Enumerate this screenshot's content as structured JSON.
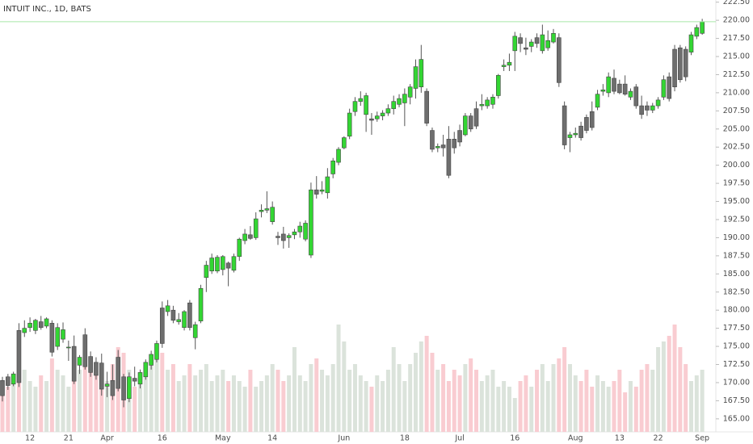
{
  "chart_data": {
    "type": "candlestick",
    "title": "INTUIT INC., 1D, BATS",
    "categories": [
      null,
      null,
      null,
      null,
      null,
      "12",
      null,
      null,
      null,
      null,
      null,
      null,
      "21",
      null,
      null,
      null,
      null,
      null,
      null,
      "Apr",
      null,
      null,
      null,
      null,
      null,
      null,
      null,
      null,
      null,
      "16",
      null,
      null,
      null,
      null,
      null,
      null,
      null,
      null,
      null,
      null,
      "May",
      null,
      null,
      null,
      null,
      null,
      null,
      null,
      null,
      "14",
      null,
      null,
      null,
      null,
      null,
      null,
      null,
      null,
      null,
      null,
      null,
      null,
      "Jun",
      null,
      null,
      null,
      null,
      null,
      null,
      null,
      null,
      null,
      null,
      "18",
      null,
      null,
      null,
      null,
      null,
      null,
      null,
      null,
      null,
      "Jul",
      null,
      null,
      null,
      null,
      null,
      null,
      null,
      null,
      null,
      "16",
      null,
      null,
      null,
      null,
      null,
      null,
      null,
      null,
      null,
      null,
      "Aug",
      null,
      null,
      null,
      null,
      null,
      null,
      null,
      "13",
      null,
      null,
      null,
      null,
      null,
      null,
      "22",
      null,
      null,
      null,
      null,
      null,
      null,
      null,
      "Sep"
    ],
    "open": [
      170.3,
      170.8,
      169.8,
      177.2,
      176.9,
      177.6,
      177.2,
      178.4,
      177.8,
      178.2,
      175.0,
      176.0,
      174.8,
      175.0,
      172.4,
      176.6,
      173.6,
      172.8,
      172.7,
      169.5,
      170.3,
      173.5,
      170.8,
      167.8,
      170.6,
      169.8,
      170.8,
      172.4,
      173.2,
      180.3,
      179.8,
      180.0,
      178.4,
      177.6,
      181.0,
      176.2,
      178.5,
      184.5,
      185.4,
      185.4,
      185.6,
      186.5,
      185.5,
      187.4,
      189.6,
      190.4,
      190.0,
      193.6,
      193.8,
      192.2,
      190.2,
      190.5,
      190.0,
      190.4,
      190.8,
      189.8,
      187.6,
      196.6,
      196.4,
      196.2,
      198.8,
      200.4,
      202.4,
      204.0,
      207.4,
      208.8,
      207.0,
      206.4,
      206.4,
      206.8,
      207.2,
      207.8,
      208.4,
      208.6,
      209.4,
      210.6,
      210.8,
      210.2,
      204.8,
      202.4,
      202.8,
      203.6,
      203.6,
      204.8,
      204.2,
      206.8,
      207.8,
      208.2,
      208.2,
      208.4,
      209.6,
      213.6,
      213.8,
      215.8,
      217.6,
      216.2,
      216.4,
      217.6,
      215.8,
      216.2,
      217.0,
      217.6,
      208.2,
      203.8,
      204.2,
      205.4,
      206.6,
      207.4,
      208.0,
      210.2,
      210.0,
      212.0,
      211.2,
      211.2,
      209.4,
      210.8,
      208.2,
      208.2,
      207.6,
      208.2,
      209.4,
      212.2,
      216.0,
      216.2,
      216.0,
      215.6,
      217.8,
      218.2
    ],
    "high": [
      170.8,
      171.2,
      171.5,
      178.2,
      178.6,
      179.0,
      178.8,
      179.2,
      179.0,
      178.6,
      178.2,
      178.3,
      175.8,
      176.5,
      173.8,
      177.5,
      174.3,
      173.5,
      174.0,
      171.5,
      172.5,
      174.5,
      171.2,
      171.4,
      172.2,
      171.8,
      173.2,
      174.4,
      175.8,
      181.2,
      181.4,
      180.6,
      179.6,
      180.0,
      181.4,
      178.4,
      183.5,
      186.8,
      187.8,
      187.6,
      187.6,
      186.7,
      187.8,
      190.0,
      191.2,
      191.6,
      193.5,
      194.6,
      196.4,
      195.0,
      190.8,
      191.5,
      190.6,
      191.2,
      192.2,
      192.4,
      197.6,
      198.5,
      197.8,
      199.6,
      201.0,
      202.5,
      204.0,
      207.8,
      209.4,
      210.2,
      210.0,
      207.2,
      207.4,
      207.6,
      208.4,
      209.6,
      209.8,
      210.6,
      211.2,
      214.6,
      216.6,
      210.6,
      205.2,
      203.0,
      204.2,
      205.4,
      204.6,
      205.6,
      207.2,
      207.2,
      208.8,
      209.8,
      209.4,
      209.8,
      212.6,
      214.6,
      215.4,
      218.4,
      218.2,
      217.6,
      217.4,
      218.2,
      219.4,
      218.6,
      218.8,
      218.2,
      208.8,
      204.6,
      205.2,
      206.0,
      207.0,
      208.8,
      210.4,
      211.2,
      212.8,
      213.2,
      211.8,
      212.4,
      210.6,
      211.2,
      209.6,
      208.8,
      208.6,
      209.4,
      212.4,
      212.8,
      216.6,
      216.6,
      216.4,
      218.4,
      219.4,
      220.2
    ],
    "low": [
      167.4,
      169.0,
      169.5,
      169.4,
      176.3,
      177.0,
      176.7,
      177.3,
      177.5,
      173.6,
      174.5,
      175.5,
      173.0,
      169.8,
      171.2,
      171.8,
      170.8,
      170.4,
      168.2,
      168.0,
      167.6,
      168.8,
      166.6,
      167.3,
      169.5,
      169.2,
      170.4,
      171.8,
      172.8,
      174.8,
      179.2,
      178.2,
      178.0,
      177.2,
      177.2,
      174.6,
      178.2,
      182.5,
      185.0,
      185.1,
      184.8,
      183.3,
      185.2,
      186.8,
      189.1,
      189.7,
      189.7,
      192.8,
      193.4,
      191.8,
      189.0,
      188.5,
      188.6,
      189.8,
      190.0,
      189.5,
      187.2,
      195.4,
      196.0,
      195.4,
      198.2,
      200.0,
      202.2,
      203.6,
      206.8,
      208.2,
      204.6,
      204.2,
      206.0,
      206.2,
      206.8,
      207.0,
      208.0,
      205.4,
      208.4,
      209.2,
      210.0,
      205.4,
      201.8,
      201.8,
      201.2,
      198.2,
      201.6,
      202.6,
      204.0,
      204.6,
      205.0,
      207.6,
      207.8,
      207.8,
      209.2,
      213.0,
      213.0,
      213.0,
      215.6,
      215.2,
      215.6,
      216.2,
      215.4,
      215.8,
      216.8,
      210.8,
      202.2,
      201.8,
      203.8,
      203.4,
      204.4,
      204.8,
      207.6,
      209.6,
      209.4,
      209.8,
      209.8,
      209.6,
      209.0,
      207.8,
      206.4,
      206.8,
      207.2,
      207.8,
      209.0,
      208.8,
      210.2,
      211.4,
      211.6,
      215.2,
      217.4,
      218.0
    ],
    "close": [
      168.2,
      169.6,
      171.2,
      170.0,
      177.5,
      178.2,
      178.6,
      177.6,
      178.8,
      174.2,
      177.6,
      177.3,
      174.9,
      170.2,
      173.5,
      172.2,
      171.4,
      171.0,
      169.1,
      169.8,
      168.2,
      169.2,
      167.6,
      170.8,
      170.2,
      171.4,
      172.8,
      173.9,
      175.4,
      175.4,
      180.6,
      178.6,
      178.7,
      179.8,
      177.6,
      178.0,
      183.0,
      186.2,
      187.2,
      187.3,
      187.4,
      185.8,
      187.4,
      189.8,
      190.5,
      189.9,
      192.6,
      193.8,
      194.0,
      194.2,
      190.0,
      189.6,
      190.3,
      190.8,
      191.6,
      192.0,
      196.6,
      196.0,
      196.6,
      198.4,
      200.6,
      202.2,
      203.8,
      207.2,
      208.8,
      209.2,
      209.6,
      206.2,
      206.8,
      207.2,
      207.8,
      208.8,
      209.2,
      209.8,
      210.8,
      213.6,
      214.6,
      205.8,
      202.2,
      202.6,
      202.4,
      198.6,
      202.4,
      203.2,
      206.8,
      205.0,
      205.4,
      208.4,
      209.0,
      209.4,
      212.4,
      213.8,
      214.2,
      217.8,
      216.8,
      216.0,
      217.0,
      216.8,
      218.0,
      217.2,
      218.2,
      211.4,
      202.8,
      204.2,
      204.4,
      203.8,
      204.8,
      205.2,
      209.8,
      210.4,
      212.2,
      210.2,
      210.0,
      209.8,
      210.2,
      208.2,
      207.0,
      207.6,
      208.2,
      209.0,
      211.8,
      209.2,
      210.8,
      211.8,
      212.2,
      218.0,
      219.0,
      219.8
    ],
    "volume": [
      45,
      40,
      50,
      75,
      55,
      45,
      40,
      50,
      45,
      65,
      55,
      50,
      40,
      70,
      55,
      60,
      65,
      55,
      50,
      45,
      60,
      75,
      70,
      55,
      40,
      45,
      50,
      60,
      65,
      70,
      55,
      60,
      45,
      50,
      60,
      50,
      55,
      60,
      45,
      50,
      55,
      45,
      50,
      45,
      40,
      55,
      40,
      45,
      50,
      60,
      55,
      45,
      50,
      75,
      50,
      45,
      60,
      65,
      55,
      50,
      60,
      95,
      80,
      55,
      60,
      50,
      45,
      40,
      50,
      45,
      55,
      75,
      60,
      45,
      60,
      70,
      80,
      85,
      70,
      55,
      60,
      45,
      55,
      50,
      60,
      65,
      55,
      45,
      50,
      55,
      40,
      45,
      40,
      30,
      45,
      50,
      40,
      55,
      60,
      45,
      60,
      65,
      75,
      60,
      50,
      45,
      55,
      40,
      50,
      45,
      40,
      45,
      55,
      35,
      45,
      40,
      55,
      60,
      55,
      75,
      80,
      85,
      95,
      75,
      60,
      45,
      50,
      55
    ],
    "volume_lim": [
      0,
      100
    ],
    "ylim": [
      163.2,
      222.8
    ],
    "yticks": [
      {
        "value": 165,
        "label": "165.00"
      },
      {
        "value": 167.5,
        "label": "167.50"
      },
      {
        "value": 170,
        "label": "170.00"
      },
      {
        "value": 172.5,
        "label": "172.50"
      },
      {
        "value": 175,
        "label": "175.00"
      },
      {
        "value": 177.5,
        "label": "177.50"
      },
      {
        "value": 180,
        "label": "180.00"
      },
      {
        "value": 182.5,
        "label": "182.50"
      },
      {
        "value": 185,
        "label": "185.00"
      },
      {
        "value": 187.5,
        "label": "187.50"
      },
      {
        "value": 190,
        "label": "190.00"
      },
      {
        "value": 192.5,
        "label": "192.50"
      },
      {
        "value": 195,
        "label": "195.00"
      },
      {
        "value": 197.5,
        "label": "197.50"
      },
      {
        "value": 200,
        "label": "200.00"
      },
      {
        "value": 202.5,
        "label": "202.50"
      },
      {
        "value": 205,
        "label": "205.00"
      },
      {
        "value": 207.5,
        "label": "207.50"
      },
      {
        "value": 210,
        "label": "210.00"
      },
      {
        "value": 212.5,
        "label": "212.50"
      },
      {
        "value": 215,
        "label": "215.00"
      },
      {
        "value": 217.5,
        "label": "217.50"
      },
      {
        "value": 220,
        "label": "220.00"
      },
      {
        "value": 222.5,
        "label": "222.50"
      }
    ],
    "up_color": "#33d633",
    "down_color": "#6e6e6e",
    "volume_up_color": "#dbe3db",
    "volume_down_color": "#f9ccd1",
    "last_price_color": "#a8e8a8"
  }
}
